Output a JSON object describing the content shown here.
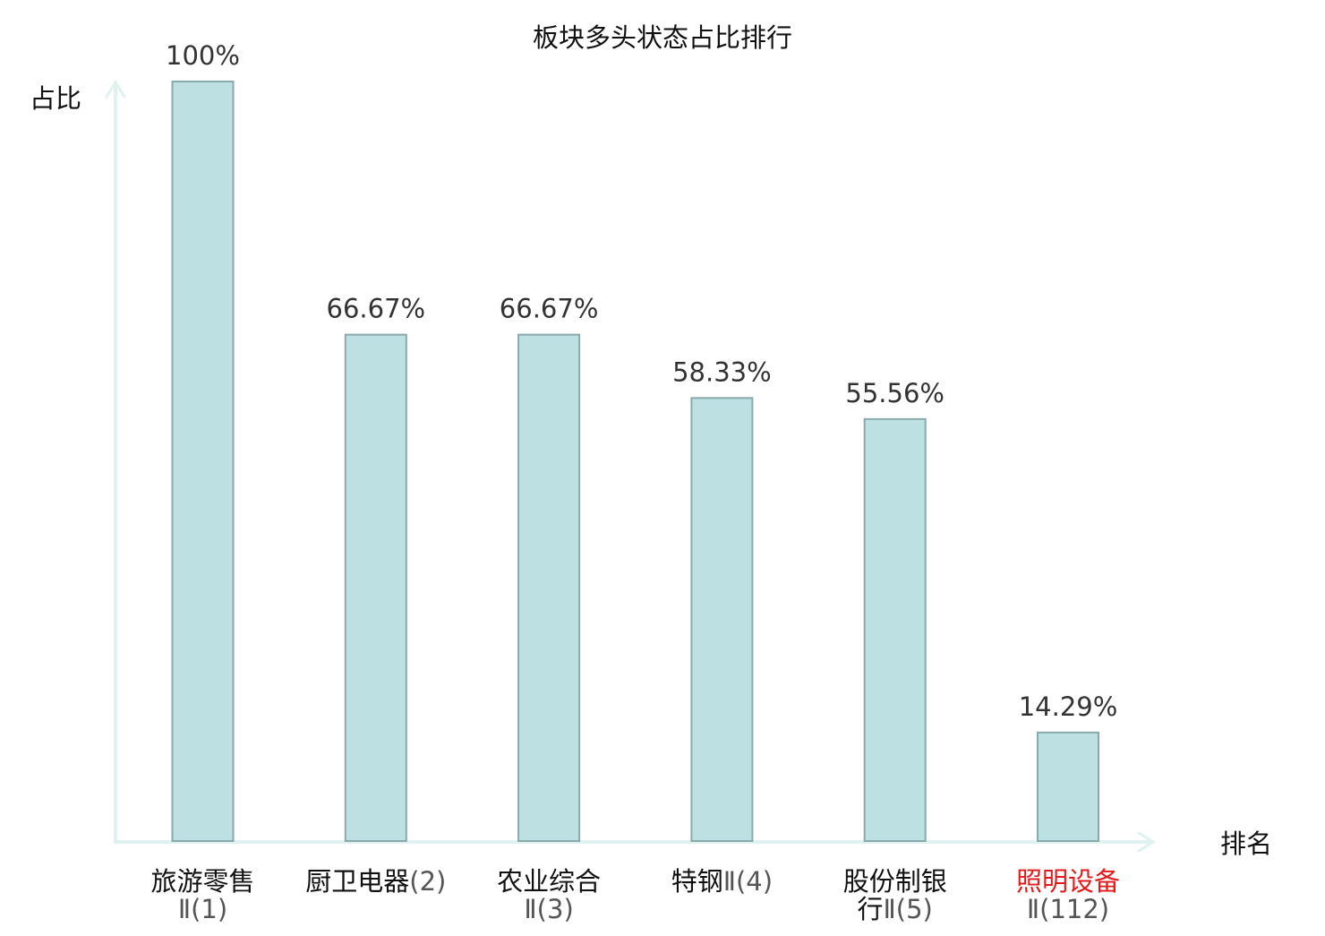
{
  "chart_data": {
    "type": "bar",
    "title": "板块多头状态占比排行",
    "ylabel": "占比",
    "xlabel": "排名",
    "ylim": [
      0,
      100
    ],
    "grid": false,
    "categories": [
      {
        "line1": "旅游零售",
        "line2": "Ⅱ(1)"
      },
      {
        "line1": "厨卫电器",
        "line2": "(2)"
      },
      {
        "line1": "农业综合",
        "line2": "Ⅱ(3)"
      },
      {
        "line1": "特钢",
        "line2": "Ⅱ(4)"
      },
      {
        "line1": "股份制银",
        "line2": "行Ⅱ(5)"
      },
      {
        "line1": "照明设备",
        "line2": "Ⅱ(112)"
      }
    ],
    "values": [
      100,
      66.67,
      66.67,
      58.33,
      55.56,
      14.29
    ],
    "value_labels": [
      "100%",
      "66.67%",
      "66.67%",
      "58.33%",
      "55.56%",
      "14.29%"
    ],
    "highlight_index": 5,
    "colors": {
      "bar_fill": "#bde1e3",
      "bar_stroke": "#8aa9ac",
      "axis": "#dff2ef",
      "highlight_text": "#e31a1c",
      "label_text": "#333333"
    }
  }
}
